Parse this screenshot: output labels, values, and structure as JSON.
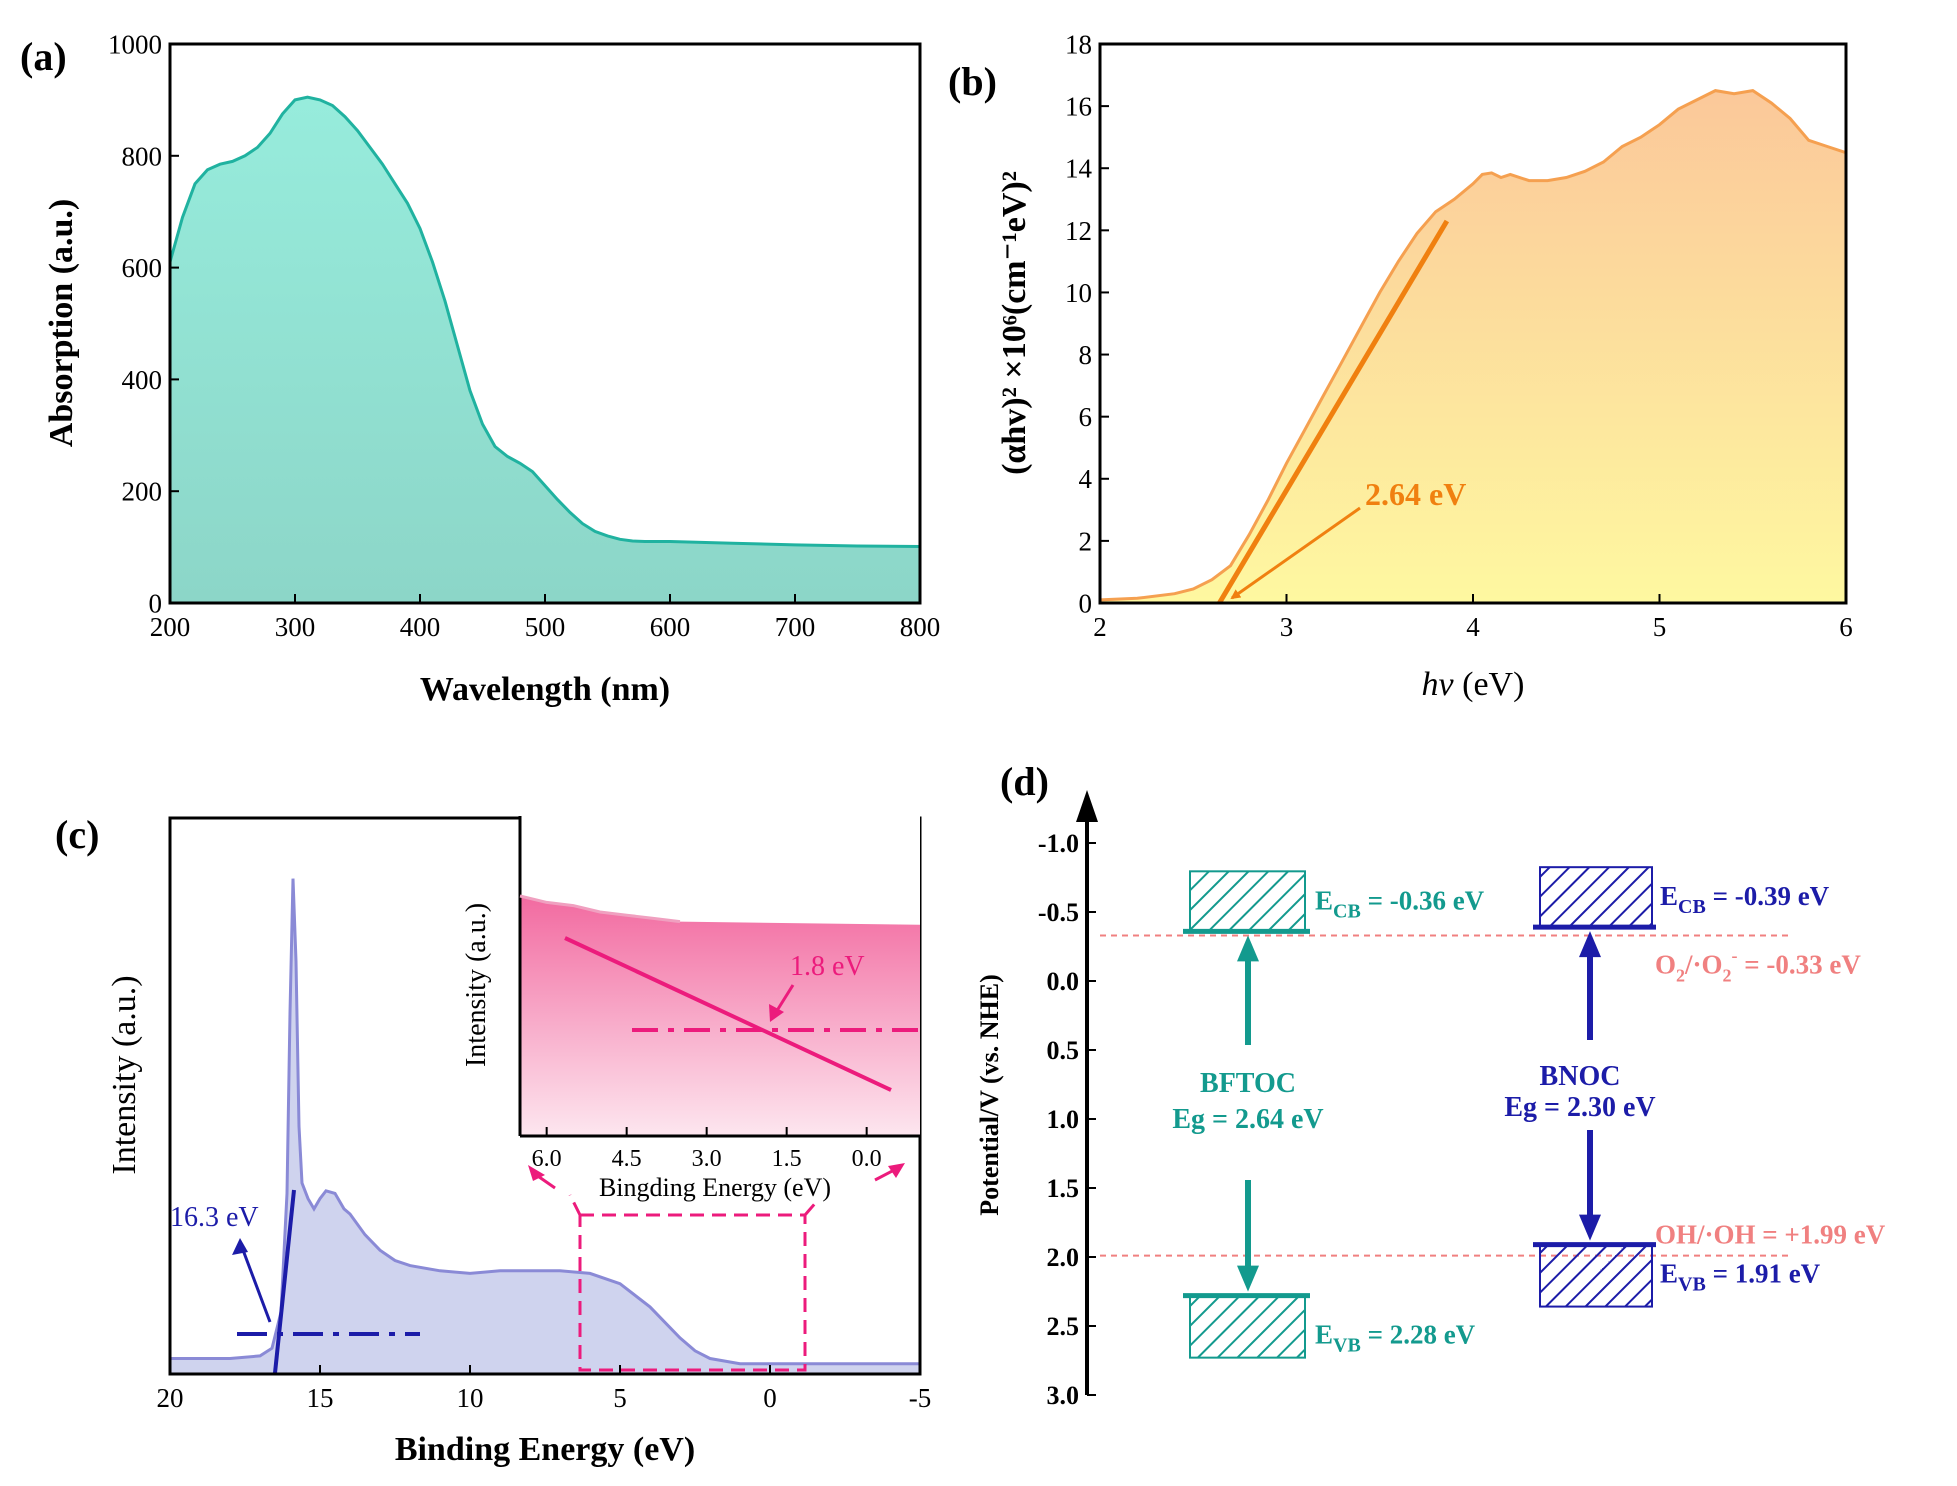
{
  "chart_data": [
    {
      "panel": "(a)",
      "type": "area",
      "xlabel": "Wavelength (nm)",
      "ylabel": "Absorption (a.u.)",
      "xlim": [
        200,
        800
      ],
      "ylim": [
        0,
        1000
      ],
      "xticks": [
        "200",
        "300",
        "400",
        "500",
        "600",
        "700",
        "800"
      ],
      "yticks": [
        "0",
        "200",
        "400",
        "600",
        "800",
        "1000"
      ],
      "fill_color": "#8fe0d0",
      "line_color": "#20b2a0",
      "x": [
        200,
        210,
        220,
        230,
        240,
        250,
        260,
        270,
        280,
        290,
        300,
        310,
        320,
        330,
        340,
        350,
        360,
        370,
        380,
        390,
        400,
        410,
        420,
        430,
        440,
        450,
        460,
        470,
        480,
        490,
        500,
        510,
        520,
        530,
        540,
        550,
        560,
        570,
        580,
        590,
        600,
        650,
        700,
        750,
        800
      ],
      "y": [
        610,
        690,
        750,
        775,
        785,
        790,
        800,
        815,
        840,
        875,
        900,
        905,
        900,
        890,
        870,
        845,
        815,
        785,
        750,
        715,
        670,
        610,
        540,
        460,
        380,
        320,
        280,
        262,
        250,
        235,
        210,
        185,
        162,
        142,
        128,
        120,
        114,
        111,
        110,
        110,
        110,
        107,
        104,
        102,
        101
      ]
    },
    {
      "panel": "(b)",
      "type": "area",
      "xlabel_italic": "hv",
      "xlabel_rest": " (eV)",
      "ylabel": "(αhv)² ×10⁶(cm⁻¹eV)²",
      "xlim": [
        2,
        6
      ],
      "ylim": [
        0,
        18
      ],
      "xticks": [
        "2",
        "3",
        "4",
        "5",
        "6"
      ],
      "yticks": [
        "0",
        "2",
        "4",
        "6",
        "8",
        "10",
        "12",
        "14",
        "16",
        "18"
      ],
      "line_color": "#f5a050",
      "fit_color": "#f08010",
      "x": [
        2.0,
        2.2,
        2.4,
        2.5,
        2.6,
        2.7,
        2.8,
        2.9,
        3.0,
        3.1,
        3.2,
        3.3,
        3.4,
        3.5,
        3.6,
        3.7,
        3.8,
        3.9,
        4.0,
        4.05,
        4.1,
        4.15,
        4.2,
        4.3,
        4.4,
        4.5,
        4.6,
        4.7,
        4.8,
        4.9,
        5.0,
        5.1,
        5.2,
        5.3,
        5.4,
        5.5,
        5.6,
        5.7,
        5.8,
        5.9,
        6.0
      ],
      "y": [
        0.1,
        0.15,
        0.3,
        0.45,
        0.75,
        1.2,
        2.2,
        3.3,
        4.5,
        5.6,
        6.7,
        7.8,
        8.9,
        10.0,
        11.0,
        11.9,
        12.6,
        13.0,
        13.5,
        13.8,
        13.85,
        13.7,
        13.8,
        13.6,
        13.6,
        13.7,
        13.9,
        14.2,
        14.7,
        15.0,
        15.4,
        15.9,
        16.2,
        16.5,
        16.4,
        16.5,
        16.1,
        15.6,
        14.9,
        14.7,
        14.5
      ],
      "fit_start": [
        2.64,
        0
      ],
      "fit_end": [
        3.86,
        12.3
      ],
      "annotation": "2.64 eV"
    },
    {
      "panel": "(c)",
      "type": "area",
      "xlabel": "Binding Energy (eV)",
      "ylabel": "Intensity (a.u.)",
      "xlim": [
        20,
        -5
      ],
      "xticks": [
        "20",
        "15",
        "10",
        "5",
        "0",
        "-5"
      ],
      "line_color": "#8a8ad6",
      "fill_color": "#cfd3ee",
      "x": [
        20,
        18,
        17,
        16.6,
        16.3,
        16.1,
        16.0,
        15.9,
        15.8,
        15.7,
        15.6,
        15.4,
        15.2,
        15.0,
        14.8,
        14.5,
        14.2,
        14.0,
        13.5,
        13.0,
        12.5,
        12.0,
        11.0,
        10.0,
        9.0,
        8.0,
        7.0,
        6.0,
        5.0,
        4.0,
        3.5,
        3.0,
        2.5,
        2.0,
        1.5,
        1.0,
        0,
        -5
      ],
      "y": [
        0.03,
        0.03,
        0.035,
        0.05,
        0.12,
        0.35,
        0.7,
        0.96,
        0.8,
        0.48,
        0.37,
        0.34,
        0.32,
        0.34,
        0.355,
        0.35,
        0.32,
        0.31,
        0.27,
        0.24,
        0.22,
        0.21,
        0.2,
        0.195,
        0.2,
        0.2,
        0.2,
        0.195,
        0.175,
        0.13,
        0.1,
        0.07,
        0.045,
        0.03,
        0.025,
        0.02,
        0.02,
        0.02
      ],
      "annotation": "16.3 eV",
      "fit_color": "#1c1ca8",
      "inset": {
        "xlabel": "Bingding Energy (eV)",
        "ylabel": "Intensity (a.u.)",
        "xlim": [
          6.5,
          -1.0
        ],
        "xticks": [
          "6.0",
          "4.5",
          "3.0",
          "1.5",
          "0.0"
        ],
        "line_color": "#f0a0c0",
        "fit_color": "#ec1b7c",
        "x": [
          6.5,
          6.0,
          5.5,
          5.0,
          4.5,
          4.0,
          3.5
        ],
        "y": [
          0.75,
          0.73,
          0.72,
          0.7,
          0.69,
          0.68,
          0.67
        ],
        "annotation": "1.8 eV"
      }
    },
    {
      "panel": "(d)",
      "type": "band-diagram",
      "ylabel": "Potential/V (vs. NHE)",
      "ylim": [
        -1.25,
        3.0
      ],
      "yticks": [
        "-1.0",
        "-0.5",
        "0.0",
        "0.5",
        "1.0",
        "1.5",
        "2.0",
        "2.5",
        "3.0"
      ],
      "tick_values": [
        -1.0,
        -0.5,
        0.0,
        0.5,
        1.0,
        1.5,
        2.0,
        2.5,
        3.0
      ],
      "materials": [
        {
          "name": "BFTOC",
          "eg_label": "Eg = 2.64 eV",
          "cb": -0.36,
          "vb": 2.28,
          "color": "#139a8e",
          "cb_main": "E",
          "cb_sub": "CB",
          "cb_value": " = -0.36 eV",
          "vb_main": "E",
          "vb_sub": "VB",
          "vb_value": " = 2.28 eV"
        },
        {
          "name": "BNOC",
          "eg_label": "Eg = 2.30 eV",
          "cb": -0.39,
          "vb": 1.91,
          "color": "#1c1ca8",
          "cb_main": "E",
          "cb_sub": "CB",
          "cb_value": " = -0.39 eV",
          "vb_main": "E",
          "vb_sub": "VB",
          "vb_value": " = 1.91 eV"
        }
      ],
      "reference_lines": [
        {
          "value": -0.33,
          "color": "#f08080"
        },
        {
          "value": 1.99,
          "color": "#f08080"
        }
      ],
      "ref_o2_part1": "O",
      "ref_o2_sub": "2",
      "ref_o2_part2": "/·O",
      "ref_o2_sub2": "2",
      "ref_o2_sup": "-",
      "ref_o2_value": " = -0.33 eV",
      "ref_oh": "OH/·OH = +1.99 eV"
    }
  ]
}
